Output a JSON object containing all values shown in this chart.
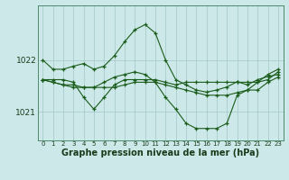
{
  "bg_color": "#cce8e8",
  "grid_color": "#aacccc",
  "line_color": "#1a5c1a",
  "marker_color": "#1a5c1a",
  "title": "Graphe pression niveau de la mer (hPa)",
  "xlabel_ticks": [
    "0",
    "1",
    "2",
    "3",
    "4",
    "5",
    "6",
    "7",
    "8",
    "9",
    "10",
    "11",
    "12",
    "13",
    "14",
    "15",
    "16",
    "17",
    "18",
    "19",
    "20",
    "21",
    "22",
    "23"
  ],
  "yticks": [
    1021,
    1022
  ],
  "ylim": [
    1020.45,
    1023.05
  ],
  "series": [
    [
      1022.0,
      1021.82,
      1021.82,
      1021.88,
      1021.93,
      1021.82,
      1021.88,
      1022.08,
      1022.35,
      1022.58,
      1022.68,
      1022.52,
      1022.0,
      1021.62,
      1021.52,
      1021.42,
      1021.38,
      1021.42,
      1021.48,
      1021.58,
      1021.52,
      1021.62,
      1021.68,
      1021.72
    ],
    [
      1021.62,
      1021.62,
      1021.62,
      1021.57,
      1021.28,
      1021.05,
      1021.28,
      1021.52,
      1021.62,
      1021.62,
      1021.62,
      1021.62,
      1021.57,
      1021.52,
      1021.57,
      1021.57,
      1021.57,
      1021.57,
      1021.57,
      1021.57,
      1021.57,
      1021.57,
      1021.72,
      1021.82
    ],
    [
      1021.62,
      1021.57,
      1021.52,
      1021.47,
      1021.47,
      1021.47,
      1021.47,
      1021.47,
      1021.52,
      1021.57,
      1021.57,
      1021.57,
      1021.52,
      1021.47,
      1021.42,
      1021.37,
      1021.32,
      1021.32,
      1021.32,
      1021.37,
      1021.42,
      1021.42,
      1021.57,
      1021.67
    ],
    [
      1021.62,
      1021.57,
      1021.52,
      1021.52,
      1021.47,
      1021.47,
      1021.57,
      1021.67,
      1021.72,
      1021.77,
      1021.72,
      1021.57,
      1021.28,
      1021.05,
      1020.78,
      1020.68,
      1020.68,
      1020.68,
      1020.78,
      1021.32,
      1021.42,
      1021.57,
      1021.62,
      1021.77
    ]
  ]
}
